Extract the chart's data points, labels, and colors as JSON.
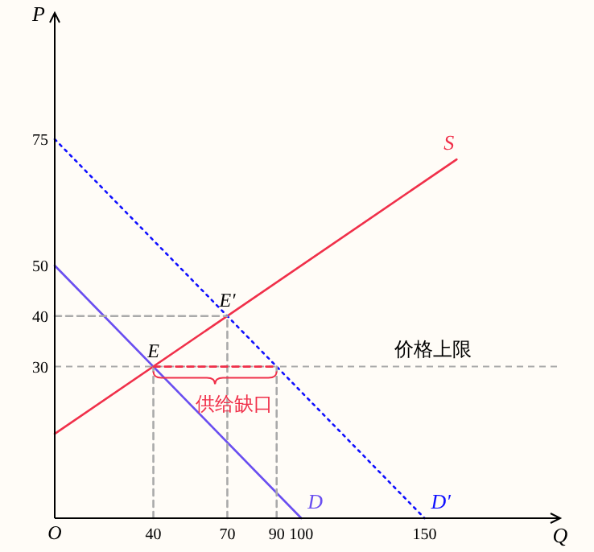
{
  "chart_data": {
    "type": "line",
    "xlabel": "Q",
    "ylabel": "P",
    "xlim": [
      0,
      205
    ],
    "ylim": [
      0,
      100
    ],
    "xticks": [
      {
        "value": 0,
        "label": "O"
      },
      40,
      70,
      90,
      100,
      150
    ],
    "yticks": [
      30,
      40,
      50,
      75
    ],
    "grid": false,
    "series": [
      {
        "name": "S",
        "color": "#f0304a",
        "x": [
          0,
          163
        ],
        "values": [
          16.7,
          71
        ],
        "line_style": "solid"
      },
      {
        "name": "D",
        "color": "#6a4ff0",
        "x": [
          0,
          100
        ],
        "values": [
          50,
          0
        ],
        "line_style": "solid"
      },
      {
        "name": "D′",
        "color": "#1010ff",
        "x": [
          0,
          150
        ],
        "values": [
          75,
          0
        ],
        "line_style": "dotted"
      },
      {
        "color": "#aaaaaa",
        "x": [
          0,
          70
        ],
        "values": [
          40,
          40
        ],
        "line_style": "dashed"
      },
      {
        "color": "#aaaaaa",
        "x": [
          40,
          40
        ],
        "values": [
          0,
          30
        ],
        "line_style": "dashed"
      },
      {
        "color": "#aaaaaa",
        "x": [
          70,
          70
        ],
        "values": [
          0,
          40
        ],
        "line_style": "dashed"
      },
      {
        "color": "#aaaaaa",
        "x": [
          90,
          90
        ],
        "values": [
          0,
          30
        ],
        "line_style": "dashed"
      },
      {
        "color": "#f0304a",
        "x": [
          40,
          90
        ],
        "values": [
          30,
          30
        ],
        "line_style": "dashed"
      }
    ],
    "ref_lines": [
      {
        "axis": "y",
        "value": 30,
        "label": "价格上限",
        "color": "#aaaaaa",
        "line_style": "dashed"
      }
    ],
    "annotations": [
      {
        "text": "E",
        "x": 40,
        "y": 30
      },
      {
        "text": "E′",
        "x": 70,
        "y": 40
      },
      {
        "text": "供给缺口",
        "x": 65,
        "y": 30
      }
    ]
  }
}
